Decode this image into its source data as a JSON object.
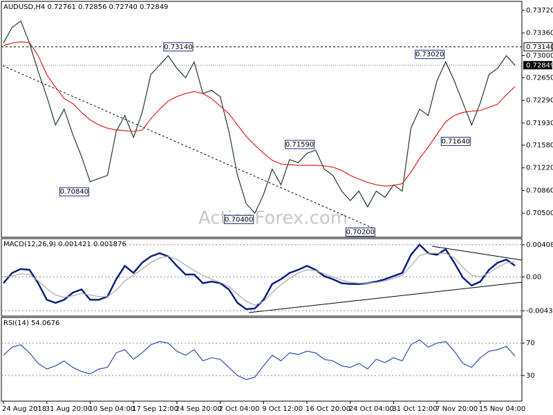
{
  "chart_data": [
    {
      "type": "line",
      "title": "AUDUSD,H4  0.72761 0.72856 0.72740 0.72849",
      "watermark": "ActionForex.com",
      "ylim": [
        0.7014,
        0.7384
      ],
      "yticks": [
        {
          "value": 0.7372,
          "label": "0.73720"
        },
        {
          "value": 0.7336,
          "label": "0.73360"
        },
        {
          "value": 0.73,
          "label": "0.73000"
        },
        {
          "value": 0.7265,
          "label": "0.72650"
        },
        {
          "value": 0.7229,
          "label": "0.72290"
        },
        {
          "value": 0.7193,
          "label": "0.71930"
        },
        {
          "value": 0.7158,
          "label": "0.71580"
        },
        {
          "value": 0.7122,
          "label": "0.71220"
        },
        {
          "value": 0.7086,
          "label": "0.70860"
        },
        {
          "value": 0.705,
          "label": "0.70500"
        }
      ],
      "level": {
        "value": 0.7314,
        "label": "0.73140"
      },
      "last": {
        "value": 0.72849,
        "label": "0.72849"
      },
      "annotations": [
        {
          "label": "0.73140",
          "value": 0.7314,
          "index": 22
        },
        {
          "label": "0.73020",
          "value": 0.7302,
          "index": 51
        },
        {
          "label": "0.71640",
          "value": 0.7164,
          "index": 54
        },
        {
          "label": "0.71590",
          "value": 0.7159,
          "index": 36
        },
        {
          "label": "0.70840",
          "value": 0.7084,
          "index": 10
        },
        {
          "label": "0.70400",
          "value": 0.704,
          "index": 29
        },
        {
          "label": "0.70200",
          "value": 0.702,
          "index": 43
        }
      ],
      "series": [
        {
          "color": "#1d3b2c",
          "values": [
            0.732,
            0.7345,
            0.7355,
            0.732,
            0.7275,
            0.7235,
            0.719,
            0.7215,
            0.7175,
            0.714,
            0.71,
            0.7105,
            0.711,
            0.718,
            0.7205,
            0.717,
            0.721,
            0.727,
            0.7285,
            0.73,
            0.728,
            0.7265,
            0.729,
            0.724,
            0.7245,
            0.7235,
            0.718,
            0.711,
            0.7065,
            0.705,
            0.708,
            0.712,
            0.7095,
            0.7135,
            0.713,
            0.7145,
            0.715,
            0.712,
            0.711,
            0.7085,
            0.707,
            0.7085,
            0.706,
            0.7085,
            0.7075,
            0.7095,
            0.7085,
            0.7185,
            0.7215,
            0.7205,
            0.726,
            0.729,
            0.726,
            0.7225,
            0.719,
            0.7225,
            0.727,
            0.728,
            0.73,
            0.72849
          ]
        },
        {
          "color": "#e02020",
          "values": [
            0.7316,
            0.732,
            0.7322,
            0.7321,
            0.73,
            0.727,
            0.725,
            0.7232,
            0.7224,
            0.721,
            0.7198,
            0.719,
            0.7185,
            0.7182,
            0.7181,
            0.718,
            0.7182,
            0.72,
            0.7215,
            0.7228,
            0.7235,
            0.724,
            0.7243,
            0.724,
            0.7232,
            0.722,
            0.7208,
            0.719,
            0.7172,
            0.7158,
            0.7145,
            0.7134,
            0.7128,
            0.7127,
            0.7126,
            0.7126,
            0.7126,
            0.7125,
            0.7123,
            0.7118,
            0.711,
            0.7104,
            0.7099,
            0.7095,
            0.7093,
            0.7094,
            0.7097,
            0.7115,
            0.7137,
            0.7155,
            0.7175,
            0.7195,
            0.7205,
            0.721,
            0.7212,
            0.7213,
            0.7218,
            0.7223,
            0.7238,
            0.7251
          ]
        }
      ]
    },
    {
      "type": "line",
      "title": "MACD(12,26,9) 0.001421 0.001876",
      "ylim": [
        -0.0048,
        0.00468
      ],
      "yticks": [
        0.004085,
        {
          "value": 0,
          "label": "0.00"
        },
        -0.0043
      ],
      "grid": true,
      "series": [
        {
          "color": "#0b1f7a",
          "values": [
            -0.0008,
            0.0005,
            0.001,
            0.0009,
            -0.0008,
            -0.0029,
            -0.0033,
            -0.0029,
            -0.002,
            -0.0016,
            -0.0029,
            -0.0029,
            -0.0025,
            -0.0003,
            0.0014,
            0.0005,
            0.0018,
            0.0026,
            0.003,
            0.0026,
            0.0014,
            0.0003,
            0.0003,
            -0.0008,
            -0.0006,
            -0.0008,
            -0.0016,
            -0.0033,
            -0.0041,
            -0.004,
            -0.0029,
            -0.0009,
            -0.0003,
            0.0005,
            0.0009,
            0.0014,
            0.0009,
            0.0001,
            -0.0003,
            -0.0008,
            -0.0009,
            -0.0009,
            -0.0008,
            -0.0006,
            -0.0003,
            0.0001,
            0.0005,
            0.0028,
            0.0041,
            0.003,
            0.0028,
            0.0035,
            0.0018,
            -0.0001,
            -0.0011,
            -0.0006,
            0.0009,
            0.0018,
            0.0022,
            0.001421
          ]
        },
        {
          "color": "#a8a8a8",
          "values": [
            0.0,
            0.0001,
            0.0004,
            0.0003,
            -0.0005,
            -0.0015,
            -0.0023,
            -0.0026,
            -0.0024,
            -0.0021,
            -0.0023,
            -0.0025,
            -0.0025,
            -0.0017,
            -0.0005,
            0.0002,
            0.001,
            0.0018,
            0.0024,
            0.0026,
            0.0022,
            0.0015,
            0.0008,
            0.0002,
            -0.0003,
            -0.0007,
            -0.0012,
            -0.0022,
            -0.0031,
            -0.0036,
            -0.0031,
            -0.002,
            -0.001,
            -0.0002,
            0.0005,
            0.0009,
            0.0008,
            0.0004,
            0.0,
            -0.0004,
            -0.0007,
            -0.0008,
            -0.0008,
            -0.0007,
            -0.0005,
            -0.0002,
            0.0002,
            0.0014,
            0.0027,
            0.003,
            0.003,
            0.003,
            0.0024,
            0.0012,
            0.0002,
            0.0,
            0.0005,
            0.0012,
            0.0018,
            0.001876
          ]
        }
      ]
    },
    {
      "type": "line",
      "title": "RSI(14) 54.0676",
      "ylim": [
        0,
        100
      ],
      "yticks": [
        70,
        30
      ],
      "grid": true,
      "categories": [
        "24 Aug 2018",
        null,
        null,
        null,
        null,
        "31 Aug 20:00",
        null,
        null,
        null,
        null,
        "10 Sep 04:00",
        null,
        null,
        null,
        null,
        "17 Sep 12:00",
        null,
        null,
        null,
        null,
        "24 Sep 20:00",
        null,
        null,
        null,
        null,
        "2 Oct 04:00",
        null,
        null,
        null,
        null,
        "9 Oct 12:00",
        null,
        null,
        null,
        null,
        "16 Oct 20:00",
        null,
        null,
        null,
        null,
        "24 Oct 04:00",
        null,
        null,
        null,
        null,
        "31 Oct 12:00",
        null,
        null,
        null,
        null,
        "7 Nov 20:00",
        null,
        null,
        null,
        null,
        "15 Nov 04:00",
        null,
        null,
        null,
        null
      ],
      "series": [
        {
          "color": "#2a4fb0",
          "values": [
            55,
            65,
            68,
            58,
            45,
            38,
            42,
            48,
            40,
            35,
            32,
            38,
            40,
            58,
            62,
            50,
            58,
            68,
            72,
            70,
            60,
            55,
            62,
            48,
            52,
            50,
            40,
            30,
            25,
            28,
            42,
            55,
            48,
            58,
            56,
            60,
            58,
            50,
            48,
            42,
            40,
            45,
            38,
            50,
            46,
            52,
            48,
            68,
            74,
            65,
            70,
            72,
            60,
            45,
            40,
            52,
            60,
            62,
            66,
            54.0676
          ]
        }
      ]
    }
  ]
}
